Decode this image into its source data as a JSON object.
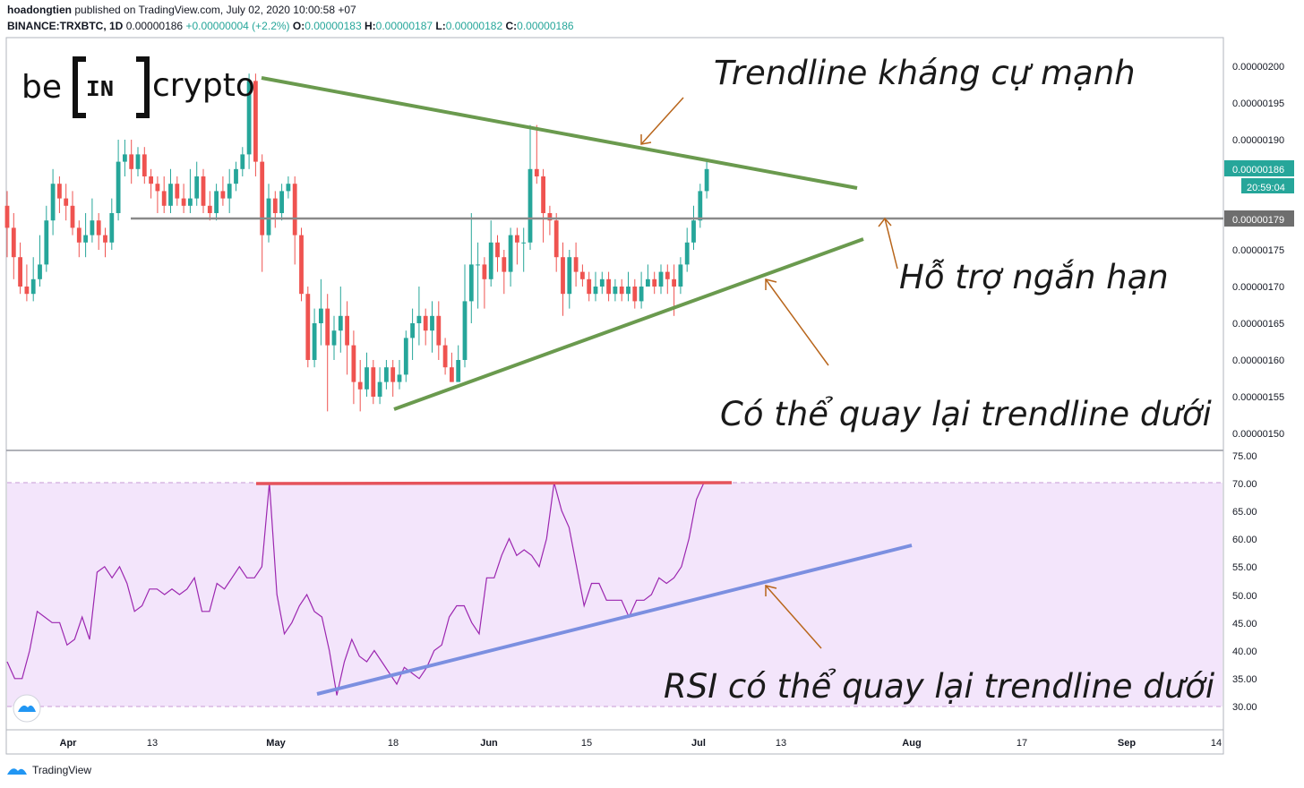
{
  "header": {
    "publisher": "hoadongtien",
    "published_text": "published on TradingView.com, July 02, 2020 10:00:58 +07",
    "symbol": "BINANCE:TRXBTC, 1D",
    "last": "0.00000186",
    "change": "+0.00000004 (+2.2%)",
    "o_label": "O:",
    "o": "0.00000183",
    "h_label": "H:",
    "h": "0.00000187",
    "l_label": "L:",
    "l": "0.00000182",
    "c_label": "C:",
    "c": "0.00000186"
  },
  "logo": {
    "left": "be",
    "box": "IN",
    "right": "crypto"
  },
  "annotations": {
    "resistance": "Trendline kháng cự mạnh",
    "support": "Hỗ trợ ngắn hạn",
    "maybe_back": "Có thể quay lại trendline dưới",
    "rsi_back": "RSI có thể quay lại trendline dưới"
  },
  "price_axis": {
    "labels": [
      "0.00000200",
      "0.00000195",
      "0.00000190",
      "0.00000175",
      "0.00000170",
      "0.00000165",
      "0.00000160",
      "0.00000155",
      "0.00000150"
    ],
    "current_price": "0.00000186",
    "countdown": "20:59:04",
    "support_price": "0.00000179"
  },
  "rsi_axis": {
    "labels": [
      "75.00",
      "70.00",
      "65.00",
      "60.00",
      "55.00",
      "50.00",
      "45.00",
      "40.00",
      "35.00",
      "30.00"
    ]
  },
  "time_axis": {
    "labels": [
      "Apr",
      "13",
      "May",
      "18",
      "Jun",
      "15",
      "Jul",
      "13",
      "Aug",
      "17",
      "Sep",
      "14"
    ]
  },
  "footer": {
    "brand": "TradingView"
  },
  "colors": {
    "up": "#26a69a",
    "down": "#ef5350",
    "trend_green": "#6a9a4e",
    "arrow": "#b8651b",
    "rsi_line": "#9c27b0",
    "rsi_band": "#f3e5fb",
    "rsi_trend": "#7b8fe0",
    "rsi_top": "#e5535b",
    "support_line": "#8a8a8a"
  },
  "chart_data": {
    "type": "candlestick",
    "price_range": [
      1.49e-06,
      2.03e-06
    ],
    "rsi_range": [
      28,
      76
    ],
    "candles": [
      [
        1.81,
        1.78,
        1.83,
        1.74
      ],
      [
        1.78,
        1.74,
        1.8,
        1.71
      ],
      [
        1.74,
        1.7,
        1.76,
        1.69
      ],
      [
        1.7,
        1.69,
        1.73,
        1.68
      ],
      [
        1.69,
        1.71,
        1.74,
        1.68
      ],
      [
        1.71,
        1.73,
        1.77,
        1.7
      ],
      [
        1.73,
        1.79,
        1.81,
        1.72
      ],
      [
        1.79,
        1.84,
        1.86,
        1.77
      ],
      [
        1.84,
        1.82,
        1.85,
        1.8
      ],
      [
        1.82,
        1.81,
        1.84,
        1.79
      ],
      [
        1.81,
        1.78,
        1.83,
        1.77
      ],
      [
        1.78,
        1.76,
        1.79,
        1.74
      ],
      [
        1.76,
        1.77,
        1.8,
        1.74
      ],
      [
        1.77,
        1.79,
        1.82,
        1.76
      ],
      [
        1.79,
        1.77,
        1.8,
        1.75
      ],
      [
        1.77,
        1.76,
        1.78,
        1.74
      ],
      [
        1.76,
        1.8,
        1.82,
        1.75
      ],
      [
        1.8,
        1.87,
        1.9,
        1.79
      ],
      [
        1.87,
        1.88,
        1.9,
        1.85
      ],
      [
        1.88,
        1.86,
        1.9,
        1.84
      ],
      [
        1.86,
        1.88,
        1.89,
        1.85
      ],
      [
        1.88,
        1.85,
        1.89,
        1.84
      ],
      [
        1.85,
        1.84,
        1.86,
        1.82
      ],
      [
        1.84,
        1.83,
        1.85,
        1.8
      ],
      [
        1.83,
        1.81,
        1.85,
        1.8
      ],
      [
        1.81,
        1.84,
        1.86,
        1.8
      ],
      [
        1.84,
        1.82,
        1.85,
        1.81
      ],
      [
        1.82,
        1.81,
        1.84,
        1.8
      ],
      [
        1.81,
        1.82,
        1.86,
        1.8
      ],
      [
        1.82,
        1.85,
        1.87,
        1.81
      ],
      [
        1.85,
        1.81,
        1.86,
        1.8
      ],
      [
        1.81,
        1.8,
        1.83,
        1.79
      ],
      [
        1.8,
        1.83,
        1.84,
        1.79
      ],
      [
        1.83,
        1.82,
        1.85,
        1.81
      ],
      [
        1.82,
        1.84,
        1.86,
        1.8
      ],
      [
        1.84,
        1.86,
        1.87,
        1.83
      ],
      [
        1.86,
        1.88,
        1.89,
        1.85
      ],
      [
        1.88,
        1.98,
        1.99,
        1.86
      ],
      [
        1.98,
        1.87,
        1.99,
        1.85
      ],
      [
        1.87,
        1.77,
        1.88,
        1.72
      ],
      [
        1.77,
        1.82,
        1.84,
        1.76
      ],
      [
        1.82,
        1.8,
        1.83,
        1.78
      ],
      [
        1.8,
        1.83,
        1.84,
        1.79
      ],
      [
        1.83,
        1.84,
        1.85,
        1.82
      ],
      [
        1.84,
        1.77,
        1.85,
        1.73
      ],
      [
        1.77,
        1.69,
        1.78,
        1.68
      ],
      [
        1.69,
        1.6,
        1.7,
        1.59
      ],
      [
        1.6,
        1.65,
        1.67,
        1.59
      ],
      [
        1.65,
        1.67,
        1.71,
        1.62
      ],
      [
        1.67,
        1.62,
        1.69,
        1.53
      ],
      [
        1.62,
        1.64,
        1.66,
        1.6
      ],
      [
        1.64,
        1.66,
        1.7,
        1.61
      ],
      [
        1.66,
        1.62,
        1.68,
        1.58
      ],
      [
        1.62,
        1.57,
        1.64,
        1.54
      ],
      [
        1.57,
        1.56,
        1.6,
        1.53
      ],
      [
        1.56,
        1.59,
        1.61,
        1.55
      ],
      [
        1.59,
        1.55,
        1.6,
        1.54
      ],
      [
        1.55,
        1.57,
        1.59,
        1.54
      ],
      [
        1.57,
        1.59,
        1.6,
        1.56
      ],
      [
        1.59,
        1.57,
        1.6,
        1.55
      ],
      [
        1.57,
        1.58,
        1.6,
        1.56
      ],
      [
        1.58,
        1.63,
        1.64,
        1.57
      ],
      [
        1.63,
        1.65,
        1.67,
        1.6
      ],
      [
        1.65,
        1.66,
        1.7,
        1.62
      ],
      [
        1.66,
        1.64,
        1.67,
        1.62
      ],
      [
        1.64,
        1.66,
        1.68,
        1.61
      ],
      [
        1.66,
        1.62,
        1.68,
        1.6
      ],
      [
        1.62,
        1.59,
        1.63,
        1.58
      ],
      [
        1.59,
        1.57,
        1.61,
        1.57
      ],
      [
        1.57,
        1.6,
        1.62,
        1.58
      ],
      [
        1.6,
        1.68,
        1.73,
        1.59
      ],
      [
        1.68,
        1.73,
        1.8,
        1.65
      ],
      [
        1.73,
        1.73,
        1.76,
        1.67
      ],
      [
        1.73,
        1.71,
        1.74,
        1.67
      ],
      [
        1.71,
        1.76,
        1.79,
        1.7
      ],
      [
        1.76,
        1.74,
        1.77,
        1.72
      ],
      [
        1.74,
        1.72,
        1.75,
        1.69
      ],
      [
        1.72,
        1.77,
        1.78,
        1.7
      ],
      [
        1.77,
        1.76,
        1.78,
        1.73
      ],
      [
        1.76,
        1.76,
        1.78,
        1.72
      ],
      [
        1.76,
        1.86,
        1.92,
        1.75
      ],
      [
        1.86,
        1.85,
        1.92,
        1.84
      ],
      [
        1.85,
        1.8,
        1.86,
        1.76
      ],
      [
        1.8,
        1.79,
        1.81,
        1.77
      ],
      [
        1.79,
        1.74,
        1.8,
        1.72
      ],
      [
        1.74,
        1.69,
        1.76,
        1.66
      ],
      [
        1.69,
        1.74,
        1.75,
        1.67
      ],
      [
        1.74,
        1.72,
        1.76,
        1.7
      ],
      [
        1.72,
        1.71,
        1.73,
        1.7
      ],
      [
        1.71,
        1.69,
        1.72,
        1.68
      ],
      [
        1.69,
        1.7,
        1.72,
        1.68
      ],
      [
        1.7,
        1.71,
        1.72,
        1.69
      ],
      [
        1.71,
        1.69,
        1.72,
        1.68
      ],
      [
        1.69,
        1.7,
        1.71,
        1.68
      ],
      [
        1.7,
        1.69,
        1.71,
        1.68
      ],
      [
        1.69,
        1.7,
        1.72,
        1.68
      ],
      [
        1.7,
        1.68,
        1.71,
        1.67
      ],
      [
        1.68,
        1.7,
        1.72,
        1.67
      ],
      [
        1.7,
        1.71,
        1.73,
        1.7
      ],
      [
        1.71,
        1.7,
        1.72,
        1.69
      ],
      [
        1.7,
        1.72,
        1.73,
        1.69
      ],
      [
        1.72,
        1.71,
        1.73,
        1.69
      ],
      [
        1.71,
        1.7,
        1.73,
        1.66
      ],
      [
        1.7,
        1.73,
        1.74,
        1.69
      ],
      [
        1.73,
        1.76,
        1.78,
        1.72
      ],
      [
        1.76,
        1.79,
        1.81,
        1.75
      ],
      [
        1.79,
        1.83,
        1.84,
        1.78
      ],
      [
        1.83,
        1.86,
        1.87,
        1.82
      ]
    ],
    "rsi": [
      38,
      35,
      35,
      40,
      47,
      46,
      45,
      45,
      41,
      42,
      46,
      42,
      54,
      55,
      53,
      55,
      52,
      47,
      48,
      51,
      51,
      50,
      51,
      50,
      51,
      53,
      47,
      47,
      52,
      51,
      53,
      55,
      53,
      53,
      55,
      70,
      50,
      43,
      45,
      48,
      50,
      47,
      46,
      40,
      32,
      38,
      42,
      39,
      38,
      40,
      38,
      36,
      34,
      37,
      36,
      35,
      37,
      40,
      41,
      46,
      48,
      48,
      45,
      43,
      53,
      53,
      57,
      60,
      57,
      58,
      57,
      55,
      60,
      70,
      65,
      62,
      55,
      48,
      52,
      52,
      49,
      49,
      49,
      46,
      49,
      49,
      50,
      53,
      52,
      53,
      55,
      60,
      67,
      70
    ]
  }
}
